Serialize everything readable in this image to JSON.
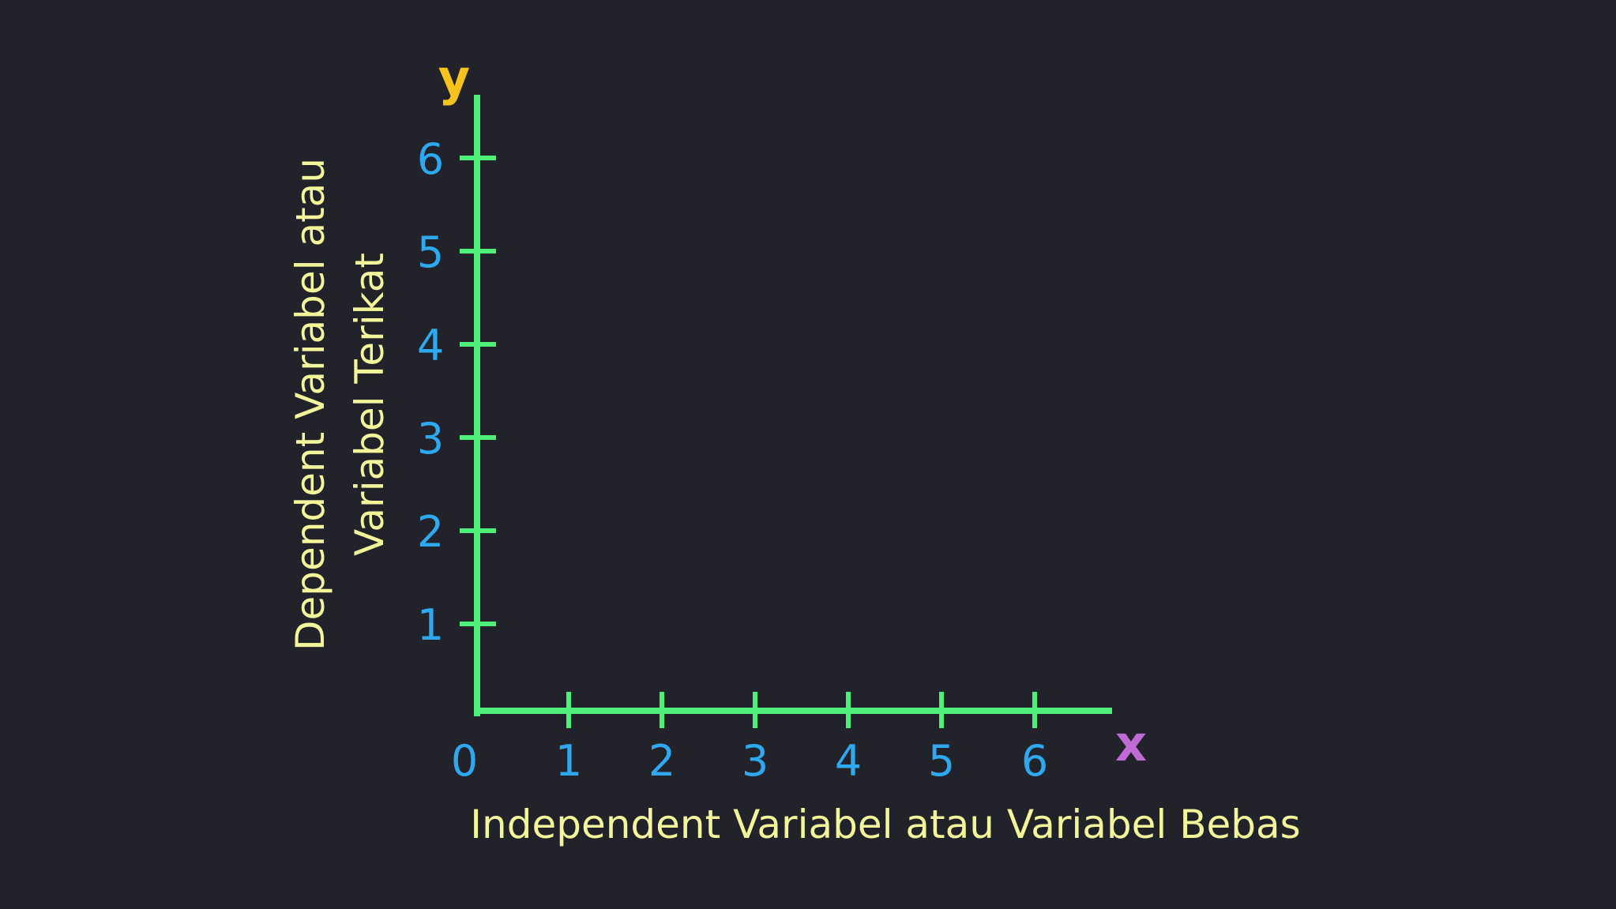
{
  "axes": {
    "x_symbol": "x",
    "y_symbol": "y",
    "x_label": "Independent Variabel atau Variabel Bebas",
    "y_label_lines": [
      "Dependent Variabel atau",
      "Variabel Terikat"
    ],
    "origin_label": "0",
    "x_ticks": [
      "1",
      "2",
      "3",
      "4",
      "5",
      "6"
    ],
    "y_ticks": [
      "1",
      "2",
      "3",
      "4",
      "5",
      "6"
    ]
  },
  "colors": {
    "background": "#21222a",
    "axis_line": "#4ff07a",
    "tick_label": "#2ea8ee",
    "axis_label": "#f2f59a",
    "y_symbol": "#f7c21c",
    "x_symbol": "#c06ad6"
  }
}
